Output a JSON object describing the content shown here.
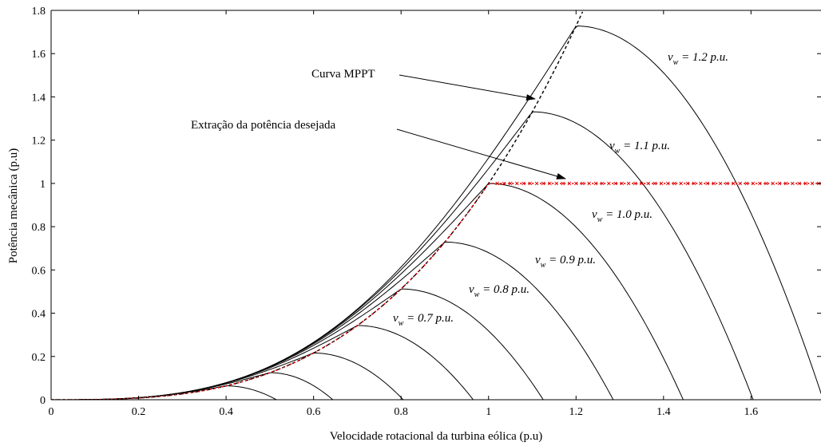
{
  "chart_data": {
    "type": "line",
    "title": "",
    "xlabel": "Velocidade rotacional da turbina eólica (p.u)",
    "ylabel": "Potência mecânica (p.u)",
    "xlim": [
      0,
      1.76
    ],
    "ylim": [
      0,
      1.8
    ],
    "x_ticks": [
      0,
      0.2,
      0.4,
      0.6,
      0.8,
      1,
      1.2,
      1.4,
      1.6
    ],
    "x_tick_labels": [
      "0",
      "0.2",
      "0.4",
      "0.6",
      "0.8",
      "1",
      "1.2",
      "1.4",
      "1.6"
    ],
    "y_ticks": [
      0,
      0.2,
      0.4,
      0.6,
      0.8,
      1,
      1.2,
      1.4,
      1.6,
      1.8
    ],
    "y_tick_labels": [
      "0",
      "0.2",
      "0.4",
      "0.6",
      "0.8",
      "1",
      "1.2",
      "1.4",
      "1.6",
      "1.8"
    ],
    "grid": false,
    "wind_curves": [
      {
        "v": 0.4,
        "peak": [
          0.4,
          0.064
        ],
        "end_x": 0.515
      },
      {
        "v": 0.5,
        "peak": [
          0.5,
          0.125
        ],
        "end_x": 0.644
      },
      {
        "v": 0.6,
        "peak": [
          0.6,
          0.216
        ],
        "end_x": 0.805
      },
      {
        "v": 0.7,
        "peak": [
          0.7,
          0.343
        ],
        "end_x": 0.965
      },
      {
        "v": 0.8,
        "peak": [
          0.8,
          0.512
        ],
        "end_x": 1.125
      },
      {
        "v": 0.9,
        "peak": [
          0.9,
          0.729
        ],
        "end_x": 1.285
      },
      {
        "v": 1.0,
        "peak": [
          1.0,
          1.0
        ],
        "end_x": 1.445
      },
      {
        "v": 1.1,
        "peak": [
          1.1,
          1.331
        ],
        "end_x": 1.605
      },
      {
        "v": 1.2,
        "peak": [
          1.2,
          1.728
        ],
        "end_x": 1.765
      }
    ],
    "mppt_curve": {
      "name": "Curva MPPT",
      "formula_k": 1.0,
      "exponent": 3,
      "x_range": [
        0,
        1.215
      ]
    },
    "desired_power_curve": {
      "name": "Extração da potência desejada",
      "limit": 1.0,
      "x_range": [
        0,
        1.76
      ]
    },
    "curve_labels": [
      {
        "v": "v",
        "sub": "w",
        "rest": " = 1.2 p.u."
      },
      {
        "v": "v",
        "sub": "w",
        "rest": " = 1.1 p.u."
      },
      {
        "v": "v",
        "sub": "w",
        "rest": " = 1.0 p.u."
      },
      {
        "v": "v",
        "sub": "w",
        "rest": " = 0.9 p.u."
      },
      {
        "v": "v",
        "sub": "w",
        "rest": " = 0.8 p.u."
      },
      {
        "v": "v",
        "sub": "w",
        "rest": " = 0.7 p.u."
      }
    ],
    "annotations": [
      {
        "text": "Curva MPPT",
        "points_to": [
          1.105,
          1.35
        ]
      },
      {
        "text": "Extração da potência desejada",
        "points_to": [
          1.18,
          1.0
        ]
      }
    ],
    "colors": {
      "curves": "#000000",
      "mppt": "#000000",
      "desired": "#e00000",
      "axes": "#000000"
    }
  }
}
